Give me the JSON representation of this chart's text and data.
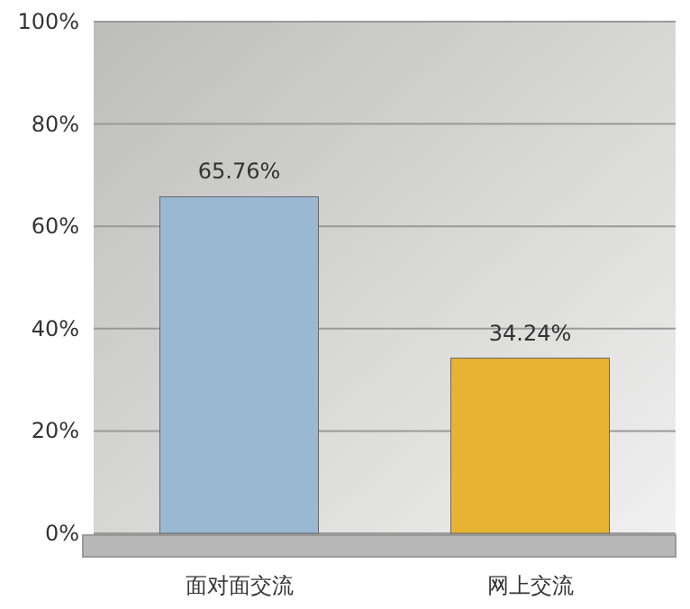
{
  "chart_data": {
    "type": "bar",
    "categories": [
      "面对面交流",
      "网上交流"
    ],
    "values": [
      65.76,
      34.24
    ],
    "colors": [
      "#9bb8d3",
      "#e6b432"
    ],
    "value_labels": [
      "65.76%",
      "34.24%"
    ],
    "ylim": [
      0,
      100
    ],
    "yticks": [
      {
        "value": 0,
        "label": "0%"
      },
      {
        "value": 20,
        "label": "20%"
      },
      {
        "value": 40,
        "label": "40%"
      },
      {
        "value": 60,
        "label": "60%"
      },
      {
        "value": 80,
        "label": "80%"
      },
      {
        "value": 100,
        "label": "100%"
      }
    ],
    "grid": "y"
  }
}
